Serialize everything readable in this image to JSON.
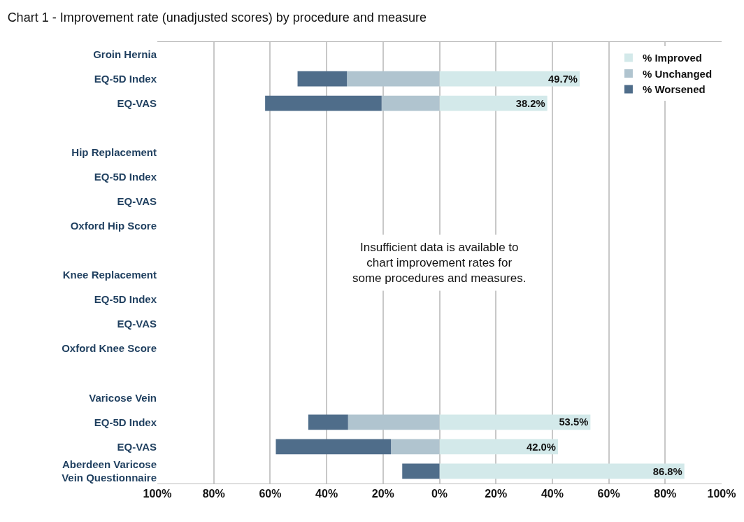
{
  "chart_data": {
    "type": "bar",
    "orientation": "horizontal",
    "stacked": true,
    "title": "Chart 1 - Improvement rate (unadjusted scores) by procedure and measure",
    "categories": [
      "Groin Hernia",
      "EQ-5D Index",
      "EQ-VAS",
      null,
      "Hip Replacement",
      "EQ-5D Index",
      "EQ-VAS",
      "Oxford Hip Score",
      null,
      "Knee Replacement",
      "EQ-5D Index",
      "EQ-VAS",
      "Oxford Knee Score",
      null,
      "Varicose Vein",
      "EQ-5D Index",
      "EQ-VAS",
      "Aberdeen Varicose\nVein Questionnaire"
    ],
    "series": [
      {
        "name": "% Improved",
        "color": "#d3e9ea",
        "values": [
          null,
          49.7,
          38.2,
          null,
          null,
          null,
          null,
          null,
          null,
          null,
          null,
          null,
          null,
          null,
          null,
          53.5,
          42.0,
          86.8
        ],
        "value_labels": [
          null,
          "49.7%",
          "38.2%",
          null,
          null,
          null,
          null,
          null,
          null,
          null,
          null,
          null,
          null,
          null,
          null,
          "53.5%",
          "42.0%",
          "86.8%"
        ]
      },
      {
        "name": "% Unchanged",
        "color": "#b0c4cf",
        "values": [
          null,
          -32.8,
          -20.5,
          null,
          null,
          null,
          null,
          null,
          null,
          null,
          null,
          null,
          null,
          null,
          null,
          -32.4,
          -17.2,
          0
        ]
      },
      {
        "name": "% Worsened",
        "color": "#4f6d8a",
        "values": [
          null,
          -17.5,
          -41.3,
          null,
          null,
          null,
          null,
          null,
          null,
          null,
          null,
          null,
          null,
          null,
          null,
          -14.1,
          -40.8,
          -13.2
        ]
      }
    ],
    "xlim": [
      -100,
      100
    ],
    "xticks": [
      {
        "value": -100,
        "label": "100%"
      },
      {
        "value": -80,
        "label": "80%"
      },
      {
        "value": -60,
        "label": "60%"
      },
      {
        "value": -40,
        "label": "40%"
      },
      {
        "value": -20,
        "label": "20%"
      },
      {
        "value": 0,
        "label": "0%"
      },
      {
        "value": 20,
        "label": "20%"
      },
      {
        "value": 40,
        "label": "40%"
      },
      {
        "value": 60,
        "label": "60%"
      },
      {
        "value": 80,
        "label": "80%"
      },
      {
        "value": 100,
        "label": "100%"
      }
    ],
    "grid": "x",
    "legend": "top right",
    "annotations": [
      "Insufficient data is available to\nchart improvement rates for\nsome procedures and measures."
    ]
  }
}
